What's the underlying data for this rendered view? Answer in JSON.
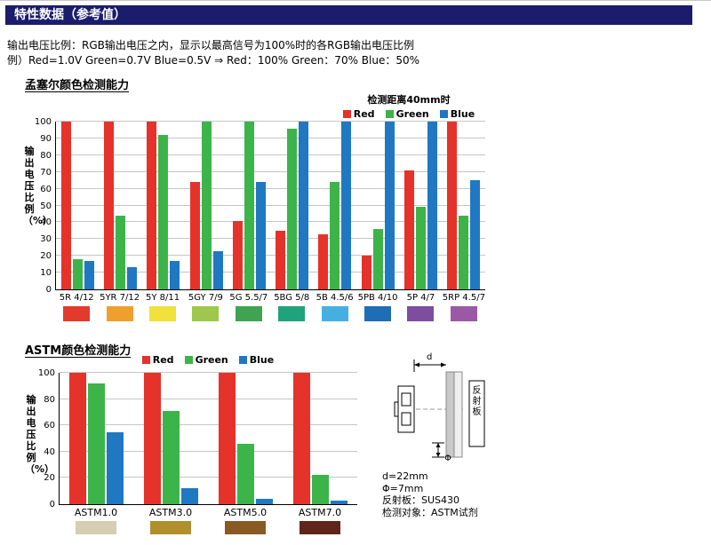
{
  "header": {
    "title": "特性数据（参考值）"
  },
  "intro": {
    "line1": "输出电压比例：RGB输出电压之内，显示以最高信号为100%时的各RGB输出电压比例",
    "line2": "例）Red=1.0V Green=0.7V Blue=0.5V ⇒ Red：100% Green：70% Blue：50%"
  },
  "munsell": {
    "section_title": "孟塞尔颜色检测能力",
    "legend_note": "检测距离40mm时",
    "ylabel": "输出电压比例（%）"
  },
  "astm": {
    "section_title": "ASTM颜色检测能力",
    "ylabel": "输出电压比例（%）"
  },
  "diagram": {
    "d_label": "d",
    "phi_label": "Φ",
    "reflector_label": "反射板",
    "notes": [
      "d=22mm",
      "Φ=7mm",
      "反射板：SUS430",
      "检测对象：ASTM试剂"
    ]
  },
  "colors": {
    "red": "#e5322a",
    "green": "#3cb44a",
    "blue": "#1f78c1",
    "header_bg": "#1b1c6b"
  },
  "chart_data": [
    {
      "type": "bar",
      "title": "孟塞尔颜色检测能力",
      "subtitle": "检测距离40mm时",
      "ylabel": "输出电压比例（%）",
      "ylim": [
        0,
        100
      ],
      "ytick": 10,
      "grid": true,
      "legend_position": "top-right",
      "categories": [
        "5R 4/12",
        "5YR 7/12",
        "5Y 8/11",
        "5GY 7/9",
        "5G 5.5/7",
        "5BG 5/8",
        "5B 4.5/6",
        "5PB 4/10",
        "5P 4/7",
        "5RP 4.5/7"
      ],
      "series": [
        {
          "name": "Red",
          "color": "#e5322a",
          "values": [
            100,
            100,
            100,
            64,
            41,
            35,
            33,
            20,
            71,
            100
          ]
        },
        {
          "name": "Green",
          "color": "#3cb44a",
          "values": [
            18,
            44,
            92,
            100,
            100,
            96,
            64,
            36,
            49,
            44
          ]
        },
        {
          "name": "Blue",
          "color": "#1f78c1",
          "values": [
            17,
            13,
            17,
            23,
            64,
            100,
            100,
            100,
            100,
            65
          ]
        }
      ],
      "swatches": [
        "#e23b2e",
        "#ef9f2e",
        "#f2e03c",
        "#9dc84c",
        "#3fa353",
        "#1fa37c",
        "#45b0e0",
        "#1f6eb5",
        "#7d4e9e",
        "#9b59a5"
      ]
    },
    {
      "type": "bar",
      "title": "ASTM颜色检测能力",
      "ylabel": "输出电压比例（%）",
      "ylim": [
        0,
        100
      ],
      "ytick": 20,
      "grid": true,
      "legend_position": "top-center",
      "categories": [
        "ASTM1.0",
        "ASTM3.0",
        "ASTM5.0",
        "ASTM7.0"
      ],
      "series": [
        {
          "name": "Red",
          "color": "#e5322a",
          "values": [
            100,
            100,
            100,
            100
          ]
        },
        {
          "name": "Green",
          "color": "#3cb44a",
          "values": [
            92,
            71,
            46,
            22
          ]
        },
        {
          "name": "Blue",
          "color": "#1f78c1",
          "values": [
            55,
            12,
            4,
            3
          ]
        }
      ],
      "swatches": [
        "#d6cdb2",
        "#b08f2c",
        "#8a5a24",
        "#61241a"
      ]
    }
  ]
}
